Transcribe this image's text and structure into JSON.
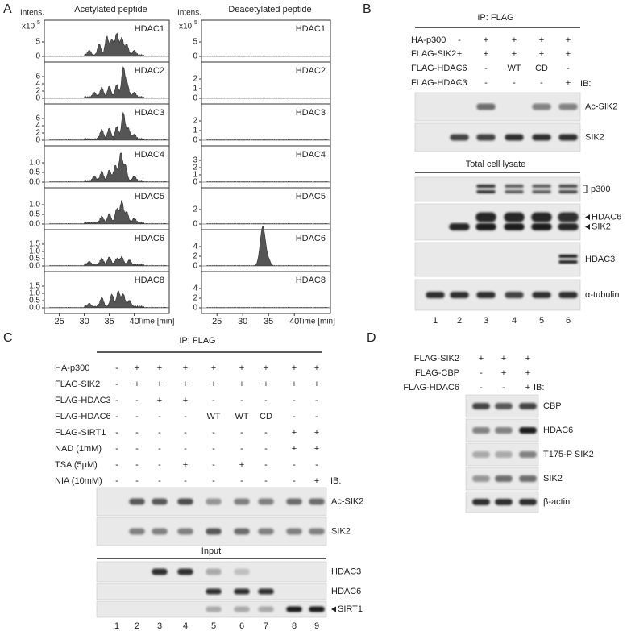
{
  "panel_a": {
    "letter": "A",
    "x_label": "Time [min]",
    "xticks": [
      "25",
      "30",
      "35",
      "40"
    ],
    "columns": [
      {
        "title": "Acetylated peptide",
        "y_label": "Intens.",
        "scale": "x10",
        "scale_exp": "5",
        "plots": [
          {
            "name": "HDAC1",
            "yticks": [
              "0",
              "5"
            ]
          },
          {
            "name": "HDAC2",
            "yticks": [
              "0",
              "2",
              "4",
              "6"
            ]
          },
          {
            "name": "HDAC3",
            "yticks": [
              "0",
              "2",
              "4",
              "6"
            ]
          },
          {
            "name": "HDAC4",
            "yticks": [
              "0.0",
              "0.5",
              "1.0"
            ]
          },
          {
            "name": "HDAC5",
            "yticks": [
              "0.0",
              "0.5",
              "1.0"
            ]
          },
          {
            "name": "HDAC6",
            "yticks": [
              "0.0",
              "0.5",
              "1.0",
              "1.5"
            ]
          },
          {
            "name": "HDAC8",
            "yticks": [
              "0.0",
              "0.5",
              "1.0",
              "1.5"
            ]
          }
        ]
      },
      {
        "title": "Deacetylated peptide",
        "y_label": "Intens.",
        "scale": "x10",
        "scale_exp": "5",
        "plots": [
          {
            "name": "HDAC1",
            "yticks": [
              "0",
              "5"
            ]
          },
          {
            "name": "HDAC2",
            "yticks": [
              "0",
              "1",
              "2"
            ]
          },
          {
            "name": "HDAC3",
            "yticks": [
              "0",
              "1",
              "2"
            ]
          },
          {
            "name": "HDAC4",
            "yticks": [
              "0",
              "1",
              "2",
              "3"
            ]
          },
          {
            "name": "HDAC5",
            "yticks": [
              "0",
              "2"
            ]
          },
          {
            "name": "HDAC6",
            "yticks": [
              "0",
              "2",
              "4"
            ]
          },
          {
            "name": "HDAC8",
            "yticks": [
              "0",
              "2",
              "4"
            ]
          }
        ]
      }
    ]
  },
  "panel_b": {
    "letter": "B",
    "ip_title": "IP: FLAG",
    "ib": "IB:",
    "conditions": [
      {
        "label": "HA-p300",
        "lanes": [
          "-",
          "-",
          "+",
          "+",
          "+",
          "+"
        ]
      },
      {
        "label": "FLAG-SIK2",
        "lanes": [
          "-",
          "+",
          "+",
          "+",
          "+",
          "+"
        ]
      },
      {
        "label": "FLAG-HDAC6",
        "lanes": [
          "-",
          "-",
          "-",
          "WT",
          "CD",
          "-"
        ]
      },
      {
        "label": "FLAG-HDAC3",
        "lanes": [
          "-",
          "-",
          "-",
          "-",
          "-",
          "+"
        ]
      }
    ],
    "ip_blots": [
      {
        "labels": [
          "Ac-SIK2"
        ]
      },
      {
        "labels": [
          "SIK2"
        ]
      }
    ],
    "lysate_title": "Total cell lysate",
    "lysate_blots": [
      {
        "labels": [
          "p300"
        ]
      },
      {
        "labels": [
          "HDAC6",
          "SIK2"
        ]
      },
      {
        "labels": [
          "HDAC3"
        ]
      },
      {
        "labels": [
          "α-tubulin"
        ]
      }
    ],
    "lane_numbers": [
      "1",
      "2",
      "3",
      "4",
      "5",
      "6"
    ]
  },
  "panel_c": {
    "letter": "C",
    "ip_title": "IP: FLAG",
    "ib": "IB:",
    "conditions": [
      {
        "label": "HA-p300",
        "lanes": [
          "-",
          "+",
          "+",
          "+",
          "+",
          "+",
          "+",
          "+",
          "+"
        ]
      },
      {
        "label": "FLAG-SIK2",
        "lanes": [
          "-",
          "+",
          "+",
          "+",
          "+",
          "+",
          "+",
          "+",
          "+"
        ]
      },
      {
        "label": "FLAG-HDAC3",
        "lanes": [
          "-",
          "-",
          "+",
          "+",
          "-",
          "-",
          "-",
          "-",
          "-"
        ]
      },
      {
        "label": "FLAG-HDAC6",
        "lanes": [
          "-",
          "-",
          "-",
          "-",
          "WT",
          "WT",
          "CD",
          "-",
          "-"
        ]
      },
      {
        "label": "FLAG-SIRT1",
        "lanes": [
          "-",
          "-",
          "-",
          "-",
          "-",
          "-",
          "-",
          "+",
          "+"
        ]
      },
      {
        "label": "NAD (1mM)",
        "lanes": [
          "-",
          "-",
          "-",
          "-",
          "-",
          "-",
          "-",
          "+",
          "+"
        ]
      },
      {
        "label": "TSA (5μM)",
        "lanes": [
          "-",
          "-",
          "-",
          "+",
          "-",
          "+",
          "-",
          "-",
          "-"
        ]
      },
      {
        "label": "NIA (10mM)",
        "lanes": [
          "-",
          "-",
          "-",
          "-",
          "-",
          "-",
          "-",
          "-",
          "+"
        ]
      }
    ],
    "ip_blots": [
      {
        "labels": [
          "Ac-SIK2"
        ]
      },
      {
        "labels": [
          "SIK2"
        ]
      }
    ],
    "input_title": "Input",
    "input_blots": [
      {
        "labels": [
          "HDAC3"
        ]
      },
      {
        "labels": [
          "HDAC6"
        ]
      },
      {
        "labels": [
          "SIRT1"
        ]
      }
    ],
    "lane_numbers": [
      "1",
      "2",
      "3",
      "4",
      "5",
      "6",
      "7",
      "8",
      "9"
    ]
  },
  "panel_d": {
    "letter": "D",
    "ib": "IB:",
    "conditions": [
      {
        "label": "FLAG-SIK2",
        "lanes": [
          "+",
          "+",
          "+"
        ]
      },
      {
        "label": "FLAG-CBP",
        "lanes": [
          "-",
          "+",
          "+"
        ]
      },
      {
        "label": "FLAG-HDAC6",
        "lanes": [
          "-",
          "-",
          "+"
        ]
      }
    ],
    "blots": [
      {
        "labels": [
          "CBP"
        ]
      },
      {
        "labels": [
          "HDAC6"
        ]
      },
      {
        "labels": [
          "T175-P SIK2"
        ]
      },
      {
        "labels": [
          "SIK2"
        ]
      },
      {
        "labels": [
          "β-actin"
        ]
      }
    ]
  }
}
